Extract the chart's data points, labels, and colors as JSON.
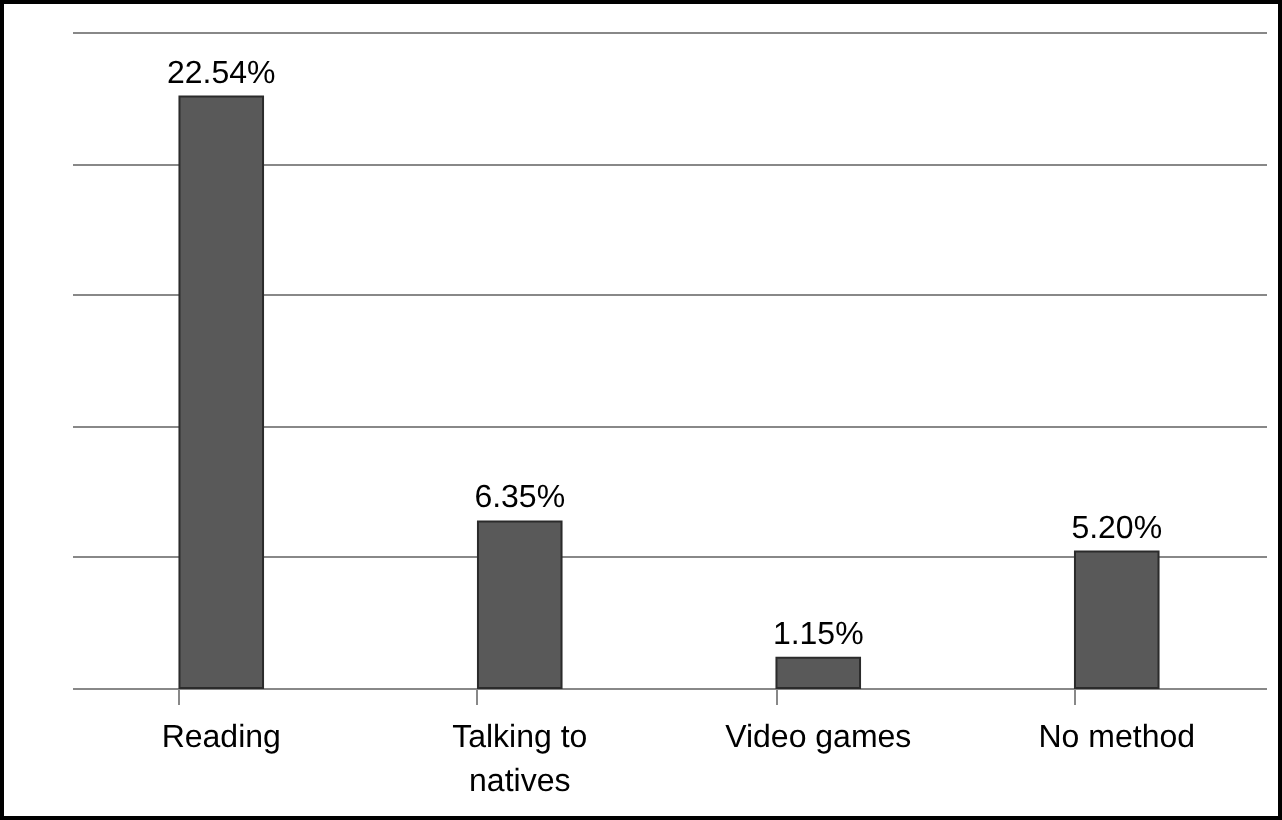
{
  "chart_data": {
    "type": "bar",
    "categories": [
      "Reading",
      "Talking to natives",
      "Video games",
      "No method"
    ],
    "values": [
      22.54,
      6.35,
      1.15,
      5.2
    ],
    "value_labels": [
      "22.54%",
      "6.35%",
      "1.15%",
      "5.20%"
    ],
    "color": "#595959",
    "ylim": [
      0,
      25
    ],
    "yticks": [
      {
        "value": 0,
        "label": null
      },
      {
        "value": 5,
        "label": null
      },
      {
        "value": 10,
        "label": null
      },
      {
        "value": 15,
        "label": null
      },
      {
        "value": 20,
        "label": null
      },
      {
        "value": 25,
        "label": null
      }
    ],
    "grid": "y",
    "tick_labels": "x"
  }
}
